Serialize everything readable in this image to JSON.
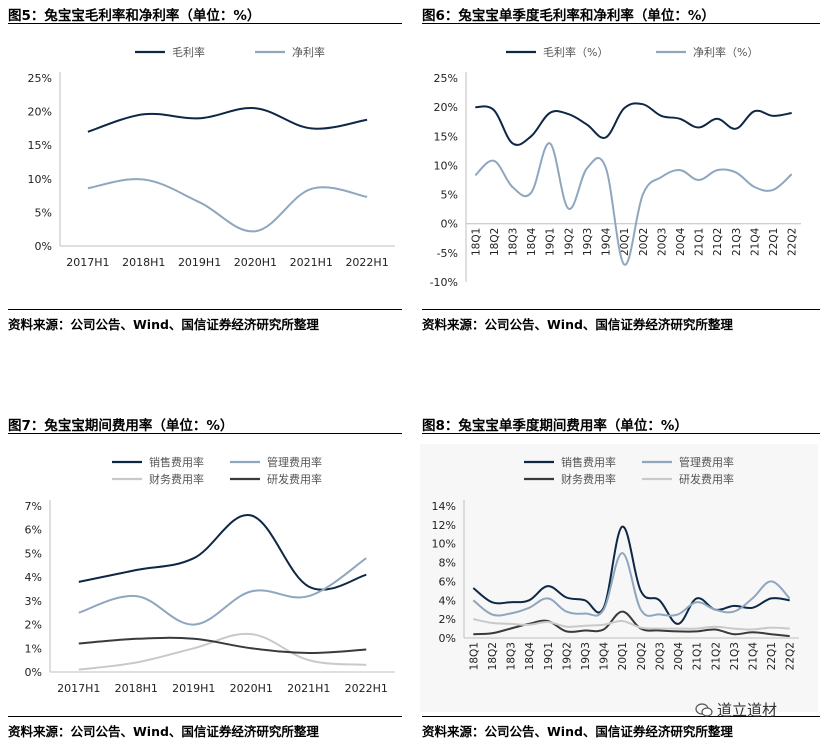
{
  "colors": {
    "navy": "#0d2745",
    "light_blue": "#8fa6bf",
    "light_gray": "#c9c9c9",
    "dark_gray": "#3a3a3a",
    "axis": "#bfbfbf"
  },
  "watermark": {
    "icon": "wechat-icon",
    "text": "道立道材"
  },
  "charts": [
    {
      "title": "图5：兔宝宝毛利率和净利率（单位：%）",
      "source": "资料来源：公司公告、Wind、国信证券经济研究所整理",
      "chart_data": {
        "type": "line",
        "categories": [
          "2017H1",
          "2018H1",
          "2019H1",
          "2020H1",
          "2021H1",
          "2022H1"
        ],
        "ylim": [
          0,
          25
        ],
        "yticks": [
          0,
          5,
          10,
          15,
          20,
          25
        ],
        "ytick_labels": [
          "0%",
          "5%",
          "10%",
          "15%",
          "20%",
          "25%"
        ],
        "legend": "top-center",
        "series": [
          {
            "name": "毛利率",
            "color": "navy",
            "values": [
              17.0,
              19.6,
              19.0,
              20.5,
              17.5,
              18.8
            ]
          },
          {
            "name": "净利率",
            "color": "light_blue",
            "values": [
              8.6,
              9.9,
              6.5,
              2.2,
              8.5,
              7.3
            ]
          }
        ]
      }
    },
    {
      "title": "图6：兔宝宝单季度毛利率和净利率（单位：%）",
      "source": "资料来源：公司公告、Wind、国信证券经济研究所整理",
      "chart_data": {
        "type": "line",
        "categories": [
          "18Q1",
          "18Q2",
          "18Q3",
          "18Q4",
          "19Q1",
          "19Q2",
          "19Q3",
          "19Q4",
          "20Q1",
          "20Q2",
          "20Q3",
          "20Q4",
          "21Q1",
          "21Q2",
          "21Q3",
          "21Q4",
          "22Q1",
          "22Q2"
        ],
        "ylim": [
          -10,
          25
        ],
        "yticks": [
          -10,
          -5,
          0,
          5,
          10,
          15,
          20,
          25
        ],
        "ytick_labels": [
          "-10%",
          "-5%",
          "0%",
          "5%",
          "10%",
          "15%",
          "20%",
          "25%"
        ],
        "legend": "top-center",
        "series": [
          {
            "name": "毛利率（%）",
            "color": "navy",
            "values": [
              20.0,
              19.5,
              13.8,
              15.0,
              19.0,
              18.8,
              17.0,
              14.8,
              19.8,
              20.5,
              18.5,
              18.0,
              16.5,
              18.0,
              16.3,
              19.3,
              18.5,
              19.0
            ]
          },
          {
            "name": "净利率（%）",
            "color": "light_blue",
            "values": [
              8.3,
              10.8,
              6.3,
              5.3,
              13.8,
              2.6,
              9.5,
              9.7,
              -7.0,
              5.0,
              8.0,
              9.2,
              7.5,
              9.2,
              8.8,
              6.3,
              5.8,
              8.5
            ]
          }
        ]
      }
    },
    {
      "title": "图7：兔宝宝期间费用率（单位：%）",
      "source": "资料来源：公司公告、Wind、国信证券经济研究所整理",
      "chart_data": {
        "type": "line",
        "categories": [
          "2017H1",
          "2018H1",
          "2019H1",
          "2020H1",
          "2021H1",
          "2022H1"
        ],
        "ylim": [
          0,
          7
        ],
        "yticks": [
          0,
          1,
          2,
          3,
          4,
          5,
          6,
          7
        ],
        "ytick_labels": [
          "0%",
          "1%",
          "2%",
          "3%",
          "4%",
          "5%",
          "6%",
          "7%"
        ],
        "legend": "top-center",
        "series": [
          {
            "name": "销售费用率",
            "color": "navy",
            "values": [
              3.8,
              4.3,
              4.8,
              6.6,
              3.6,
              4.1
            ]
          },
          {
            "name": "管理费用率",
            "color": "light_blue",
            "values": [
              2.5,
              3.2,
              2.0,
              3.4,
              3.2,
              4.8
            ]
          },
          {
            "name": "财务费用率",
            "color": "light_gray",
            "values": [
              0.1,
              0.4,
              1.0,
              1.6,
              0.5,
              0.3
            ]
          },
          {
            "name": "研发费用率",
            "color": "dark_gray",
            "values": [
              1.2,
              1.4,
              1.4,
              1.0,
              0.8,
              0.95
            ]
          }
        ]
      }
    },
    {
      "title": "图8：兔宝宝单季度期间费用率（单位：%）",
      "source": "资料来源：公司公告、Wind、国信证券经济研究所整理",
      "chart_data": {
        "type": "line",
        "categories": [
          "18Q1",
          "18Q2",
          "18Q3",
          "18Q4",
          "19Q1",
          "19Q2",
          "19Q3",
          "19Q4",
          "20Q1",
          "20Q2",
          "20Q3",
          "20Q4",
          "21Q1",
          "21Q2",
          "21Q3",
          "21Q4",
          "22Q1",
          "22Q2"
        ],
        "ylim": [
          0,
          14
        ],
        "yticks": [
          0,
          2,
          4,
          6,
          8,
          10,
          12,
          14
        ],
        "ytick_labels": [
          "0%",
          "2%",
          "4%",
          "6%",
          "8%",
          "10%",
          "12%",
          "14%"
        ],
        "legend": "top-center",
        "series": [
          {
            "name": "销售费用率",
            "color": "navy",
            "values": [
              5.3,
              3.8,
              3.8,
              4.0,
              5.5,
              4.3,
              4.0,
              3.2,
              11.8,
              5.0,
              4.0,
              1.5,
              4.2,
              3.0,
              3.4,
              3.2,
              4.2,
              4.0
            ]
          },
          {
            "name": "管理费用率",
            "color": "light_blue",
            "values": [
              4.0,
              2.5,
              2.6,
              3.2,
              4.2,
              2.8,
              2.6,
              3.0,
              9.0,
              3.0,
              2.5,
              2.5,
              3.8,
              3.0,
              2.8,
              4.2,
              6.0,
              4.2
            ]
          },
          {
            "name": "财务费用率",
            "color": "dark_gray",
            "values": [
              0.4,
              0.5,
              1.0,
              1.5,
              1.8,
              0.7,
              0.8,
              0.9,
              2.8,
              1.0,
              0.8,
              0.7,
              0.7,
              0.9,
              0.4,
              0.6,
              0.4,
              0.2
            ]
          },
          {
            "name": "研发费用率",
            "color": "light_gray",
            "values": [
              2.0,
              1.6,
              1.5,
              1.4,
              1.7,
              1.2,
              1.3,
              1.4,
              1.8,
              1.1,
              1.0,
              1.0,
              1.0,
              1.2,
              1.0,
              0.9,
              1.1,
              1.0
            ]
          }
        ]
      }
    }
  ]
}
